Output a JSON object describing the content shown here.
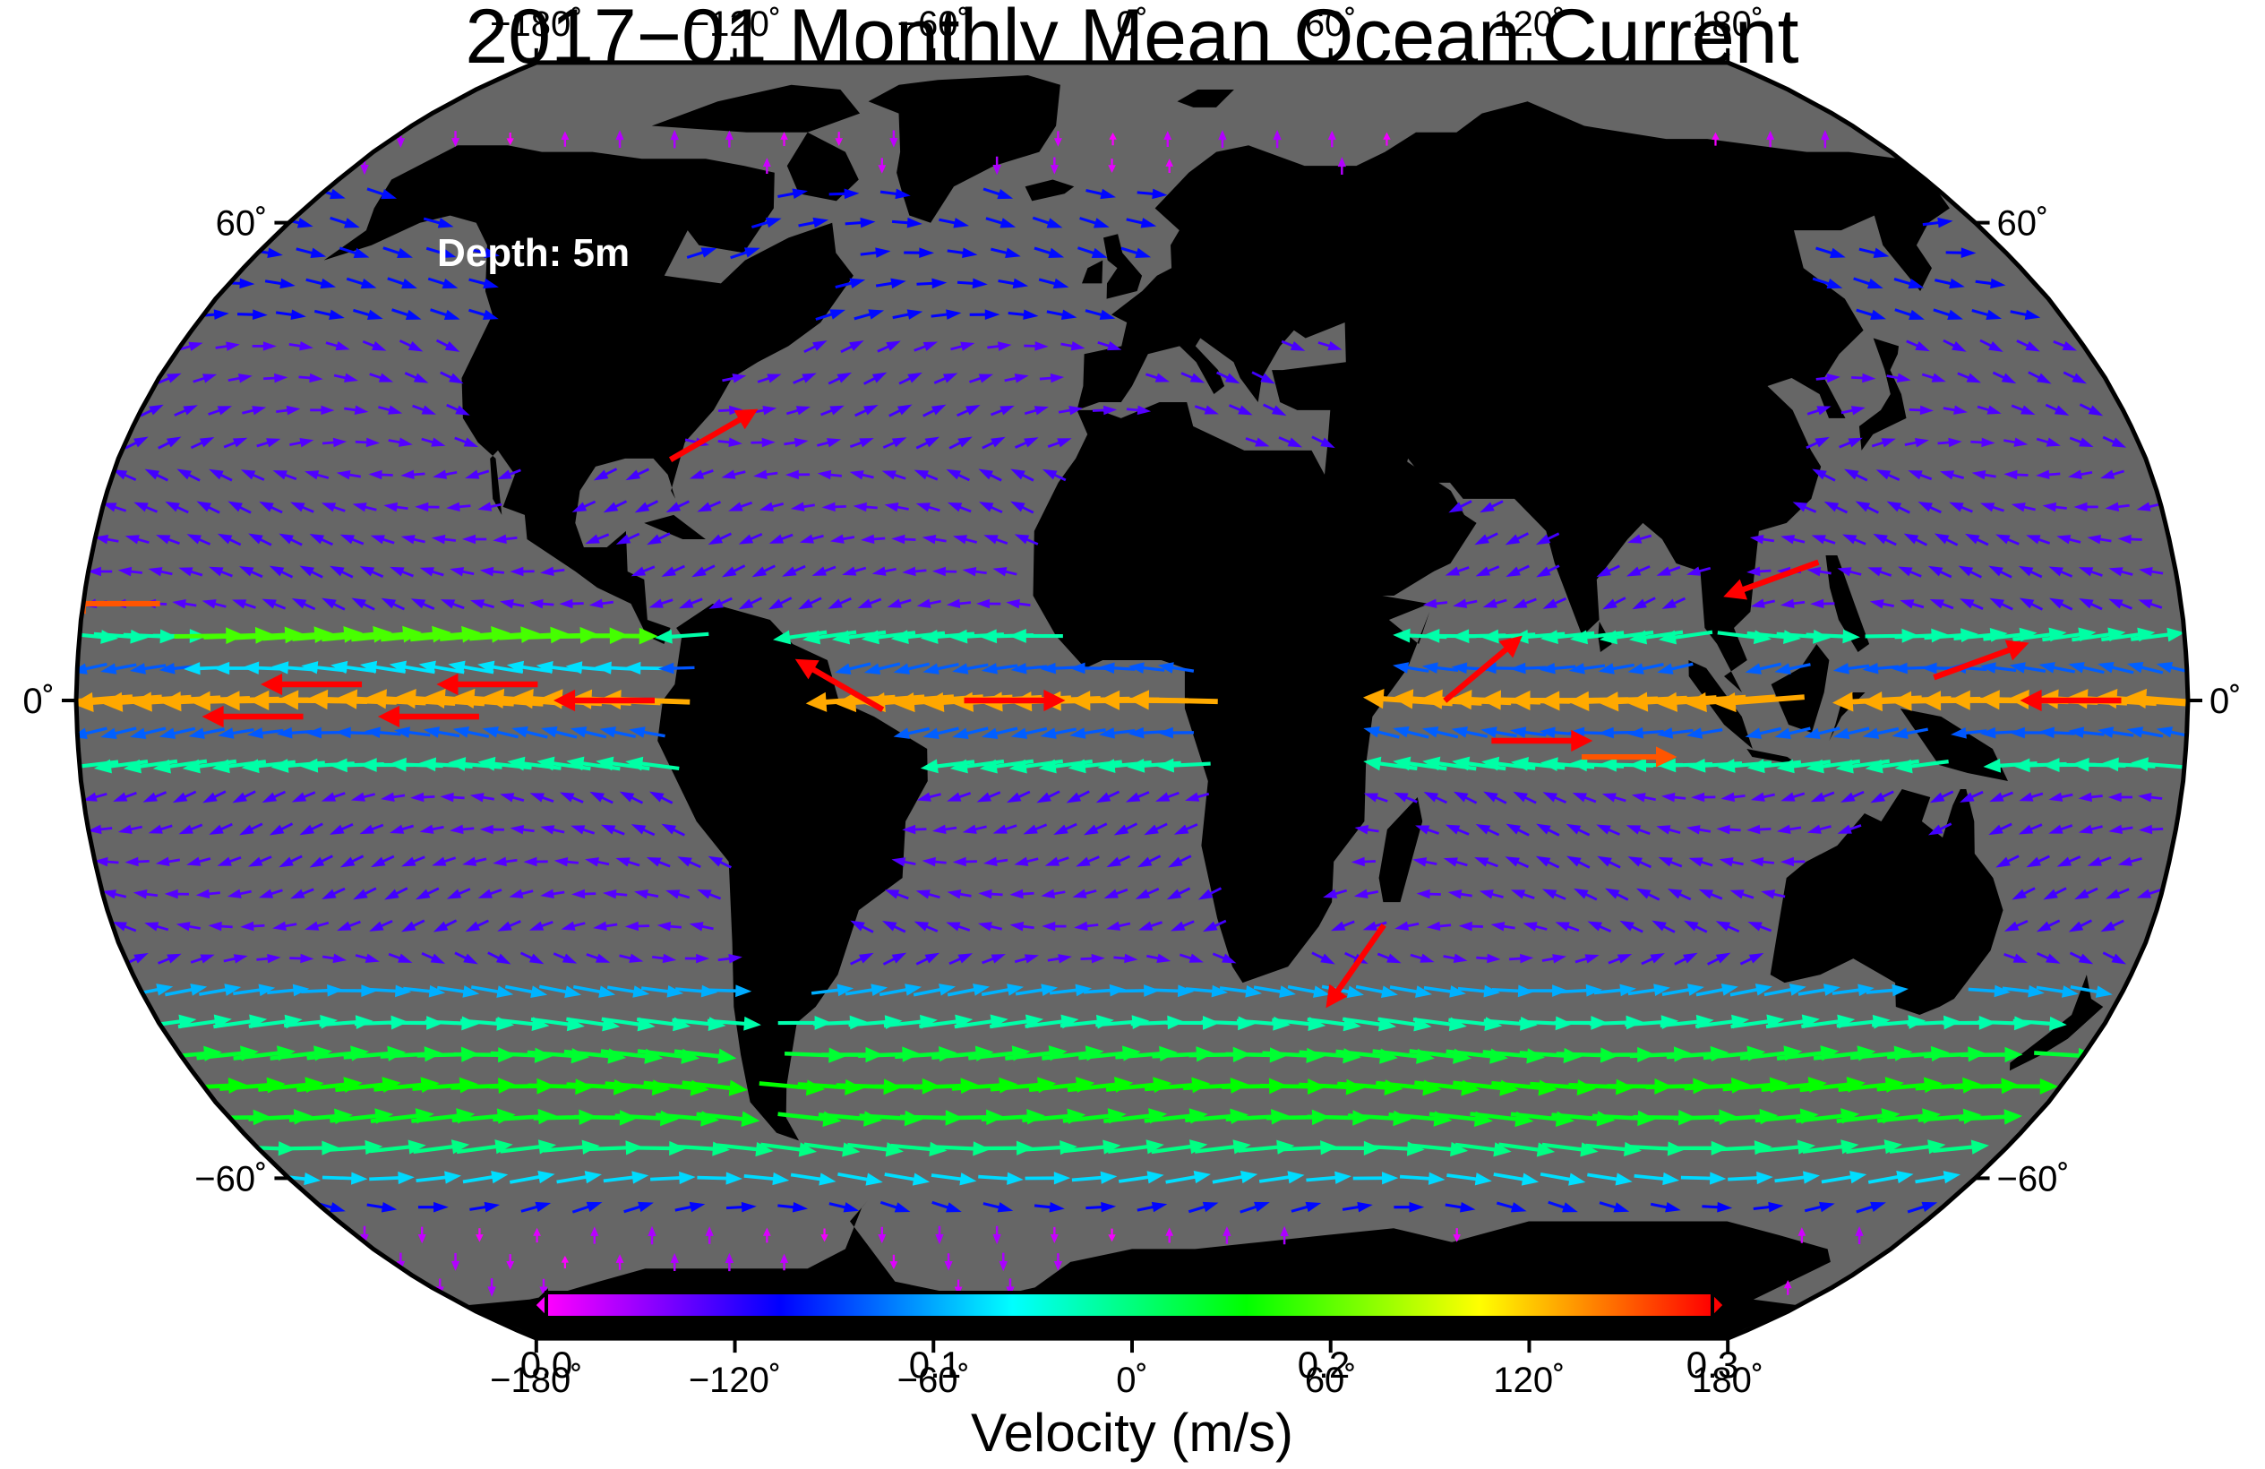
{
  "title": "2017−01 Monthly Mean Ocean Current",
  "depth_label": "Depth: 5m",
  "axes": {
    "lon_ticks": [
      "−180˚",
      "−120˚",
      "−60˚",
      "0˚",
      "60˚",
      "120˚",
      "180˚"
    ],
    "lon_values": [
      -180,
      -120,
      -60,
      0,
      60,
      120,
      180
    ],
    "lat_ticks": [
      "60˚",
      "0˚",
      "−60˚"
    ],
    "lat_values": [
      60,
      0,
      -60
    ],
    "lat_ticks_right": [
      "60˚",
      "0˚",
      "−60˚"
    ]
  },
  "colorbar": {
    "label": "Velocity (m/s)",
    "ticks": [
      "0.0",
      "0.1",
      "0.2",
      "0.3"
    ],
    "tick_values": [
      0.0,
      0.1,
      0.2,
      0.3
    ],
    "range": [
      0.0,
      0.3
    ],
    "colors": [
      "#ff00ff",
      "#8000ff",
      "#0000ff",
      "#0080ff",
      "#00ffff",
      "#00ff80",
      "#00ff00",
      "#80ff00",
      "#ffff00",
      "#ff8000",
      "#ff0000"
    ]
  },
  "map": {
    "projection": "Robinson",
    "ocean_color": "#666666",
    "land_color": "#000000",
    "border_color": "#000000"
  },
  "chart_data": {
    "type": "vector-field",
    "variable": "ocean current velocity",
    "units": "m/s",
    "lon_range": [
      -180,
      180
    ],
    "lat_range": [
      -90,
      90
    ],
    "strong_currents": [
      {
        "lon": -140,
        "lat": 2,
        "speed": 0.3,
        "dir": 180
      },
      {
        "lon": -110,
        "lat": 2,
        "speed": 0.3,
        "dir": 180
      },
      {
        "lon": -150,
        "lat": -2,
        "speed": 0.3,
        "dir": 180
      },
      {
        "lon": -120,
        "lat": -2,
        "speed": 0.3,
        "dir": 180
      },
      {
        "lon": -90,
        "lat": 0,
        "speed": 0.3,
        "dir": 180
      },
      {
        "lon": -175,
        "lat": 12,
        "speed": 0.28,
        "dir": 180
      },
      {
        "lon": -75,
        "lat": 33,
        "speed": 0.3,
        "dir": 30
      },
      {
        "lon": -50,
        "lat": 2,
        "speed": 0.3,
        "dir": 150
      },
      {
        "lon": -20,
        "lat": 0,
        "speed": 0.3,
        "dir": 0
      },
      {
        "lon": 40,
        "lat": -33,
        "speed": 0.3,
        "dir": 235
      },
      {
        "lon": 60,
        "lat": 4,
        "speed": 0.3,
        "dir": 40
      },
      {
        "lon": 70,
        "lat": -5,
        "speed": 0.3,
        "dir": 0
      },
      {
        "lon": 85,
        "lat": -7,
        "speed": 0.28,
        "dir": 0
      },
      {
        "lon": 110,
        "lat": 15,
        "speed": 0.3,
        "dir": 200
      },
      {
        "lon": 145,
        "lat": 5,
        "speed": 0.3,
        "dir": 20
      },
      {
        "lon": 160,
        "lat": 0,
        "speed": 0.3,
        "dir": 180
      }
    ]
  }
}
